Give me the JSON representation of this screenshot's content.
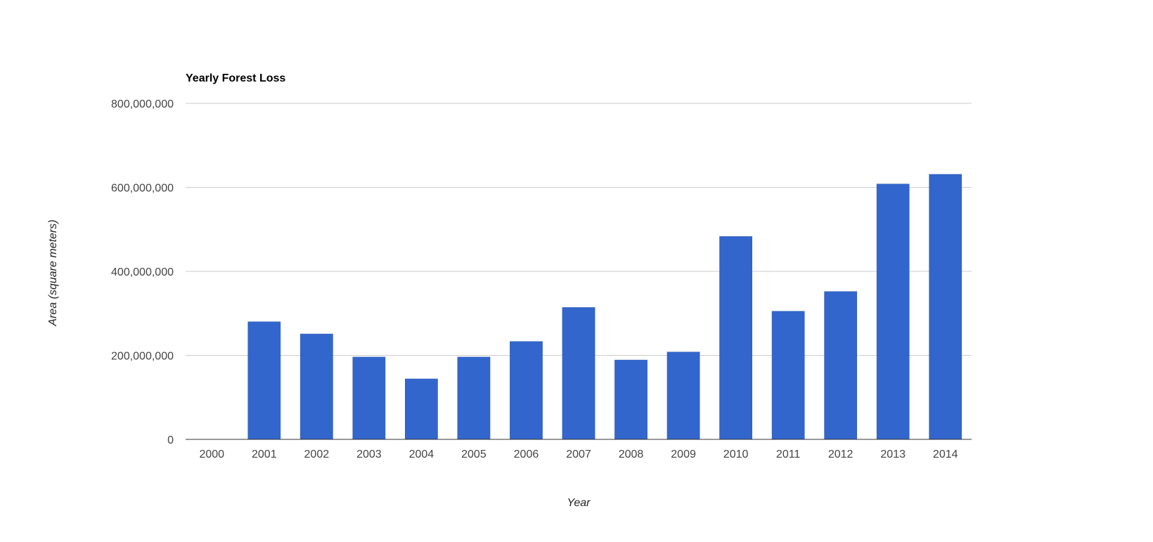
{
  "chart_data": {
    "type": "bar",
    "title": "Yearly Forest Loss",
    "xlabel": "Year",
    "ylabel": "Area (square meters)",
    "categories": [
      "2000",
      "2001",
      "2002",
      "2003",
      "2004",
      "2005",
      "2006",
      "2007",
      "2008",
      "2009",
      "2010",
      "2011",
      "2012",
      "2013",
      "2014"
    ],
    "values": [
      0,
      280000000,
      251000000,
      196000000,
      144000000,
      196000000,
      233000000,
      314000000,
      189000000,
      208000000,
      483000000,
      305000000,
      352000000,
      608000000,
      631000000
    ],
    "ylim": [
      0,
      800000000
    ],
    "yticks": [
      0,
      200000000,
      400000000,
      600000000,
      800000000
    ],
    "ytick_labels": [
      "0",
      "200,000,000",
      "400,000,000",
      "600,000,000",
      "800,000,000"
    ],
    "grid": true,
    "bar_color": "#3366cc"
  }
}
